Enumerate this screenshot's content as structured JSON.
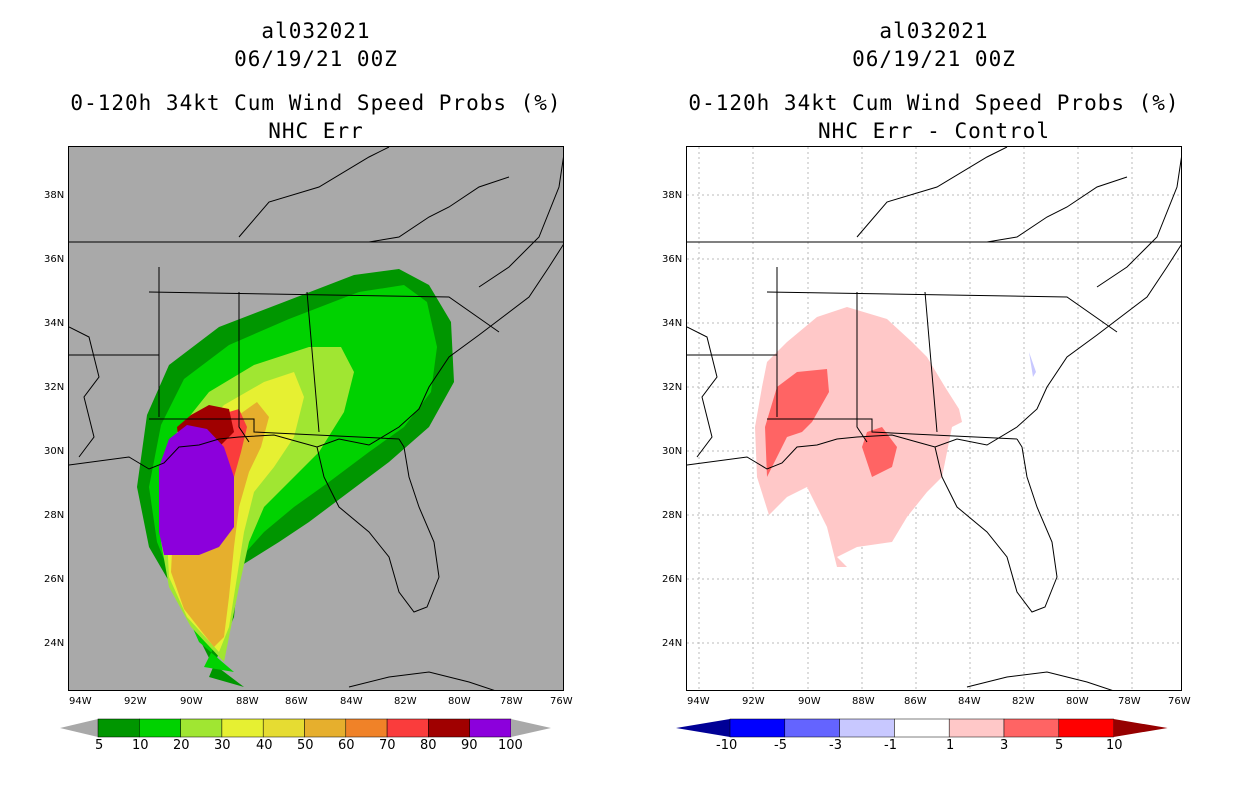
{
  "left": {
    "title_line1": "al032021",
    "title_line2": "06/19/21 00Z",
    "title_line3": "0-120h 34kt Cum Wind Speed Probs (%)",
    "title_line4": "NHC Err",
    "lat_labels": [
      "38N",
      "36N",
      "34N",
      "32N",
      "30N",
      "28N",
      "26N",
      "24N"
    ],
    "lon_labels": [
      "94W",
      "92W",
      "90W",
      "88W",
      "86W",
      "84W",
      "82W",
      "80W",
      "78W",
      "76W"
    ],
    "colorbar_labels": [
      "5",
      "10",
      "20",
      "30",
      "40",
      "50",
      "60",
      "70",
      "80",
      "90",
      "100"
    ],
    "colorbar_colors": [
      "#009600",
      "#00d200",
      "#a0e632",
      "#e6f032",
      "#e6dc32",
      "#e6af2d",
      "#f08228",
      "#fa3c3c",
      "#a00000",
      "#8c00dc"
    ],
    "colors": {
      "background": "#a9a9a9"
    }
  },
  "right": {
    "title_line1": "al032021",
    "title_line2": "06/19/21 00Z",
    "title_line3": "0-120h 34kt Cum Wind Speed Probs (%)",
    "title_line4": "NHC Err - Control",
    "lat_labels": [
      "38N",
      "36N",
      "34N",
      "32N",
      "30N",
      "28N",
      "26N",
      "24N"
    ],
    "lon_labels": [
      "94W",
      "92W",
      "90W",
      "88W",
      "86W",
      "84W",
      "82W",
      "80W",
      "78W",
      "76W"
    ],
    "colorbar_labels": [
      "-10",
      "-5",
      "-3",
      "-1",
      "1",
      "3",
      "5",
      "10"
    ],
    "colorbar_colors": [
      "#000096",
      "#0000ff",
      "#6464ff",
      "#c8c8ff",
      "#ffffff",
      "#ffc8c8",
      "#ff6464",
      "#ff0000",
      "#960000"
    ],
    "colors": {
      "background": "#ffffff"
    }
  }
}
